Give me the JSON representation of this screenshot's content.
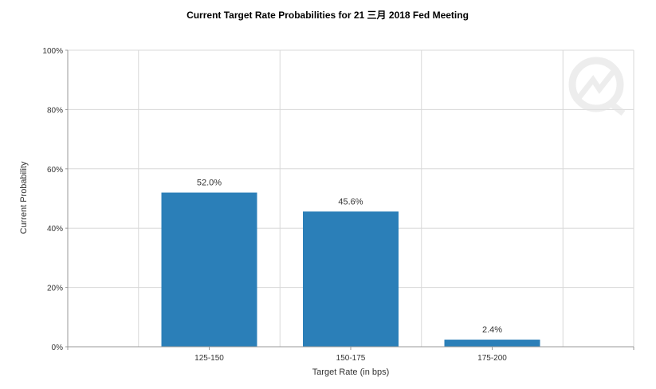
{
  "chart_data": {
    "type": "bar",
    "title": "Current Target Rate Probabilities for 21 三月 2018  Fed Meeting",
    "xlabel": "Target Rate (in bps)",
    "ylabel": "Current Probability",
    "categories": [
      "125-150",
      "150-175",
      "175-200"
    ],
    "values": [
      52.0,
      45.6,
      2.4
    ],
    "value_labels": [
      "52.0%",
      "45.6%",
      "2.4%"
    ],
    "ylim": [
      0,
      100
    ],
    "yticks": [
      0,
      20,
      40,
      60,
      80,
      100
    ],
    "ytick_labels": [
      "0%",
      "20%",
      "40%",
      "60%",
      "80%",
      "100%"
    ],
    "grid": true,
    "colors": {
      "bar": "#2b7fb8",
      "grid": "#d8d8d8",
      "axis": "#999999",
      "watermark": "#e6e6e6"
    }
  }
}
